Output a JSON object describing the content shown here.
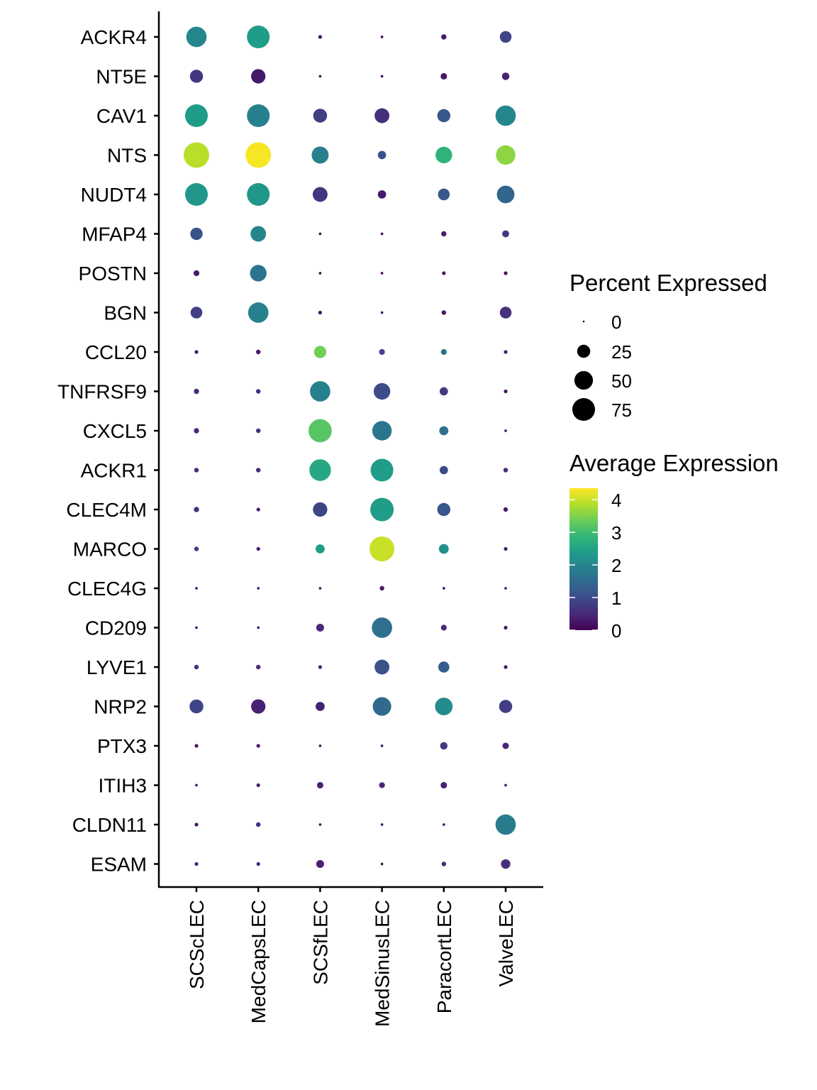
{
  "chart_data": {
    "type": "dotplot",
    "xlabel": "",
    "ylabel": "",
    "categories": [
      "SCScLEC",
      "MedCapsLEC",
      "SCSfLEC",
      "MedSinusLEC",
      "ParacortLEC",
      "ValveLEC"
    ],
    "genes": [
      "ACKR4",
      "NT5E",
      "CAV1",
      "NTS",
      "NUDT4",
      "MFAP4",
      "POSTN",
      "BGN",
      "CCL20",
      "TNFRSF9",
      "CXCL5",
      "ACKR1",
      "CLEC4M",
      "MARCO",
      "CLEC4G",
      "CD209",
      "LYVE1",
      "NRP2",
      "PTX3",
      "ITIH3",
      "CLDN11",
      "ESAM"
    ],
    "percent_expressed": [
      [
        60,
        75,
        2,
        1,
        4,
        20
      ],
      [
        25,
        30,
        1,
        1,
        6,
        8
      ],
      [
        75,
        75,
        28,
        32,
        25,
        60
      ],
      [
        95,
        95,
        42,
        10,
        40,
        55
      ],
      [
        75,
        75,
        32,
        10,
        20,
        45
      ],
      [
        22,
        35,
        1,
        1,
        4,
        7
      ],
      [
        5,
        40,
        1,
        1,
        2,
        2
      ],
      [
        20,
        60,
        2,
        1,
        3,
        20
      ],
      [
        2,
        3,
        22,
        5,
        5,
        2
      ],
      [
        4,
        3,
        60,
        40,
        10,
        2
      ],
      [
        4,
        3,
        78,
        55,
        12,
        1
      ],
      [
        3,
        3,
        68,
        75,
        10,
        3
      ],
      [
        4,
        2,
        30,
        80,
        25,
        3
      ],
      [
        3,
        2,
        12,
        90,
        14,
        2
      ],
      [
        1,
        1,
        1,
        3,
        1,
        1
      ],
      [
        1,
        1,
        9,
        60,
        5,
        2
      ],
      [
        3,
        3,
        2,
        32,
        18,
        2
      ],
      [
        28,
        30,
        12,
        50,
        45,
        25
      ],
      [
        2,
        2,
        1,
        1,
        8,
        6
      ],
      [
        1,
        2,
        6,
        5,
        6,
        1
      ],
      [
        2,
        3,
        1,
        1,
        1,
        60
      ],
      [
        2,
        2,
        9,
        1,
        3,
        13
      ]
    ],
    "average_expression": [
      [
        2.0,
        2.4,
        0.2,
        0.1,
        0.3,
        0.9
      ],
      [
        0.7,
        0.3,
        0.1,
        0.1,
        0.3,
        0.4
      ],
      [
        2.4,
        1.9,
        0.8,
        0.6,
        1.2,
        2.0
      ],
      [
        3.9,
        4.3,
        1.9,
        1.1,
        2.8,
        3.6
      ],
      [
        2.3,
        2.3,
        0.7,
        0.3,
        1.2,
        1.4
      ],
      [
        1.1,
        2.0,
        0.1,
        0.1,
        0.4,
        0.7
      ],
      [
        0.3,
        1.7,
        0.1,
        0.1,
        0.3,
        0.2
      ],
      [
        0.8,
        1.9,
        0.2,
        0.2,
        0.3,
        0.6
      ],
      [
        0.3,
        0.3,
        3.4,
        0.9,
        1.6,
        0.4
      ],
      [
        0.5,
        0.5,
        1.9,
        1.0,
        0.7,
        0.3
      ],
      [
        0.5,
        0.6,
        3.2,
        1.7,
        1.6,
        0.3
      ],
      [
        0.5,
        0.5,
        2.6,
        2.4,
        1.0,
        0.5
      ],
      [
        0.6,
        0.3,
        0.9,
        2.4,
        1.2,
        0.4
      ],
      [
        0.7,
        0.3,
        2.4,
        4.0,
        2.2,
        0.4
      ],
      [
        0.3,
        0.3,
        0.3,
        0.3,
        0.3,
        0.3
      ],
      [
        0.3,
        0.3,
        0.5,
        1.6,
        0.5,
        0.3
      ],
      [
        0.6,
        0.5,
        0.4,
        1.1,
        1.3,
        0.3
      ],
      [
        0.9,
        0.4,
        0.4,
        1.5,
        2.1,
        0.8
      ],
      [
        0.3,
        0.3,
        0.3,
        0.3,
        0.7,
        0.5
      ],
      [
        0.3,
        0.4,
        0.4,
        0.5,
        0.4,
        0.3
      ],
      [
        0.3,
        0.5,
        0.3,
        0.3,
        0.3,
        1.8
      ],
      [
        0.4,
        0.4,
        0.4,
        0.2,
        0.5,
        0.6
      ]
    ],
    "size_legend": {
      "title": "Percent Expressed",
      "values": [
        0,
        25,
        50,
        75
      ],
      "labels": [
        "0",
        "25",
        "50",
        "75"
      ]
    },
    "color_legend": {
      "title": "Average Expression",
      "ticks": [
        0,
        1,
        2,
        3,
        4
      ],
      "labels": [
        "0",
        "1",
        "2",
        "3",
        "4"
      ],
      "range": [
        0,
        4.35
      ],
      "colormap": "viridis",
      "colors": [
        "#440154",
        "#482878",
        "#3e4989",
        "#31688e",
        "#26828e",
        "#1f9e89",
        "#35b779",
        "#6ece58",
        "#b5de2b",
        "#fde725"
      ]
    },
    "legend_position": "right",
    "grid": false
  }
}
